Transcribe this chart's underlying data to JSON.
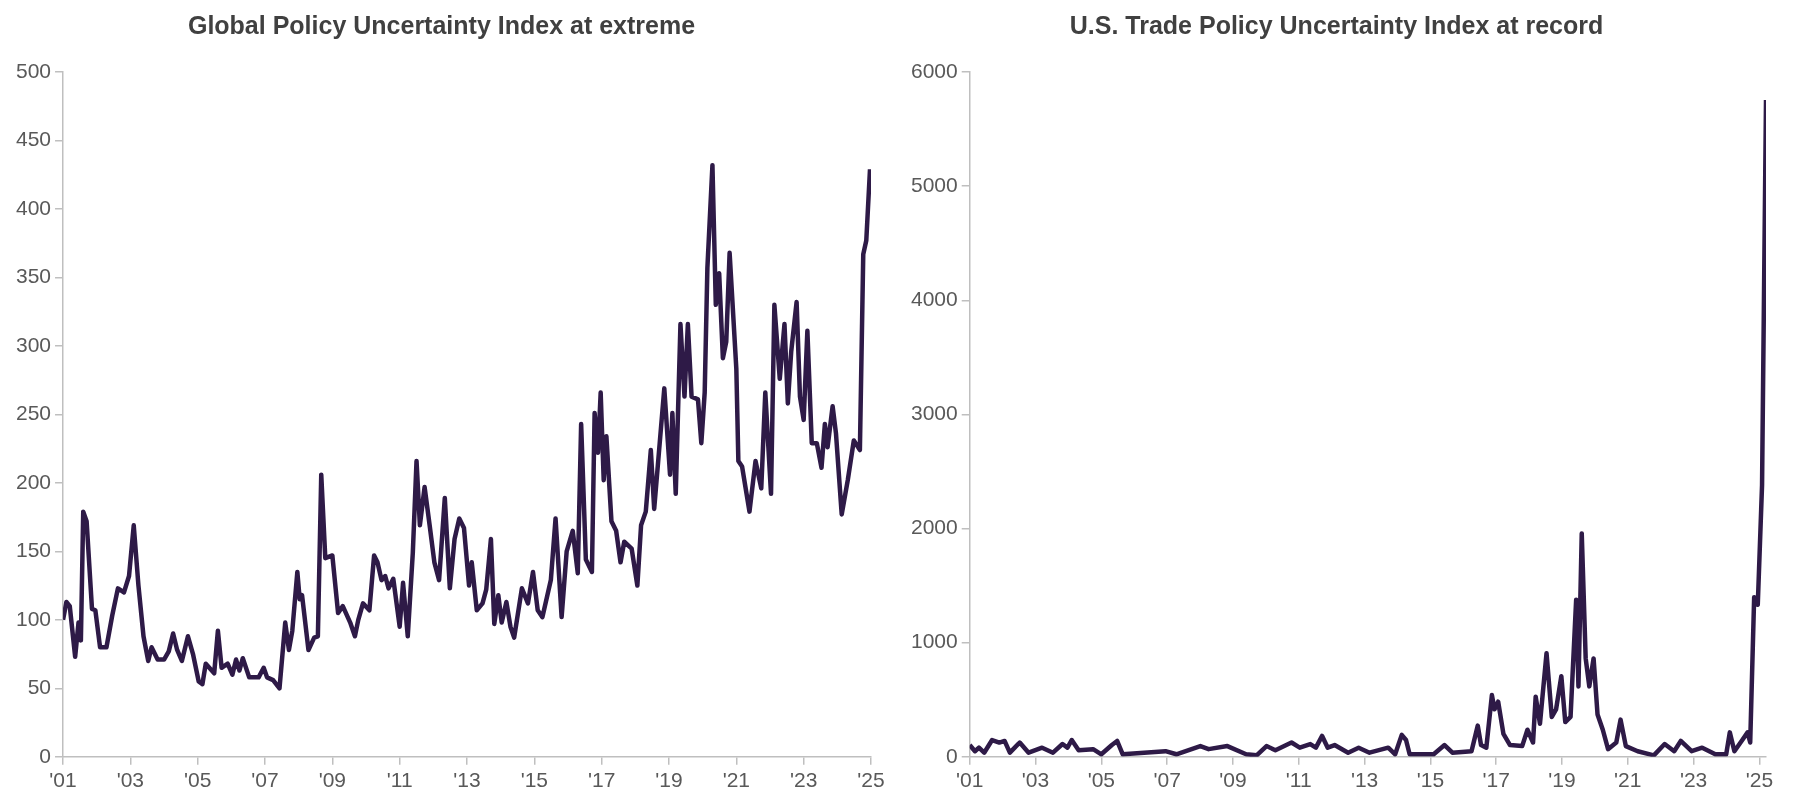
{
  "chart_data": [
    {
      "type": "line",
      "title": "Global Policy Uncertainty Index at extreme",
      "color": "#2e1a47",
      "grid": false,
      "xlim": [
        2001,
        2025
      ],
      "ylim": [
        0,
        500
      ],
      "yticks": [
        0,
        50,
        100,
        150,
        200,
        250,
        300,
        350,
        400,
        450,
        500
      ],
      "xticks": [
        {
          "value": 2001,
          "label": "'01"
        },
        {
          "value": 2003,
          "label": "'03"
        },
        {
          "value": 2005,
          "label": "'05"
        },
        {
          "value": 2007,
          "label": "'07"
        },
        {
          "value": 2009,
          "label": "'09"
        },
        {
          "value": 2011,
          "label": "'11"
        },
        {
          "value": 2013,
          "label": "'13"
        },
        {
          "value": 2015,
          "label": "'15"
        },
        {
          "value": 2017,
          "label": "'17"
        },
        {
          "value": 2019,
          "label": "'19"
        },
        {
          "value": 2021,
          "label": "'21"
        },
        {
          "value": 2023,
          "label": "'23"
        },
        {
          "value": 2025,
          "label": "'25"
        }
      ],
      "x": [
        2001.0,
        2001.1,
        2001.2,
        2001.36,
        2001.46,
        2001.53,
        2001.6,
        2001.7,
        2001.86,
        2001.96,
        2002.1,
        2002.29,
        2002.46,
        2002.63,
        2002.81,
        2002.96,
        2003.1,
        2003.24,
        2003.39,
        2003.53,
        2003.63,
        2003.81,
        2004.0,
        2004.14,
        2004.27,
        2004.39,
        2004.53,
        2004.71,
        2004.86,
        2005.03,
        2005.14,
        2005.24,
        2005.49,
        2005.6,
        2005.71,
        2005.89,
        2006.03,
        2006.14,
        2006.24,
        2006.34,
        2006.53,
        2006.81,
        2006.96,
        2007.06,
        2007.24,
        2007.43,
        2007.6,
        2007.71,
        2007.81,
        2007.96,
        2008.03,
        2008.1,
        2008.29,
        2008.46,
        2008.57,
        2008.67,
        2008.79,
        2009.0,
        2009.17,
        2009.31,
        2009.53,
        2009.67,
        2009.77,
        2009.91,
        2010.1,
        2010.24,
        2010.34,
        2010.46,
        2010.57,
        2010.67,
        2010.81,
        2011.0,
        2011.1,
        2011.24,
        2011.39,
        2011.5,
        2011.6,
        2011.74,
        2011.89,
        2012.03,
        2012.17,
        2012.34,
        2012.49,
        2012.63,
        2012.77,
        2012.91,
        2013.06,
        2013.14,
        2013.29,
        2013.46,
        2013.57,
        2013.71,
        2013.81,
        2013.93,
        2014.03,
        2014.17,
        2014.29,
        2014.4,
        2014.63,
        2014.81,
        2014.96,
        2015.1,
        2015.24,
        2015.49,
        2015.63,
        2015.81,
        2015.96,
        2016.14,
        2016.29,
        2016.39,
        2016.53,
        2016.71,
        2016.79,
        2016.89,
        2016.97,
        2017.06,
        2017.14,
        2017.29,
        2017.43,
        2017.56,
        2017.67,
        2017.89,
        2018.06,
        2018.17,
        2018.31,
        2018.46,
        2018.56,
        2018.86,
        2019.03,
        2019.1,
        2019.2,
        2019.34,
        2019.46,
        2019.56,
        2019.67,
        2019.86,
        2019.96,
        2020.06,
        2020.14,
        2020.29,
        2020.39,
        2020.49,
        2020.6,
        2020.7,
        2020.8,
        2021.0,
        2021.06,
        2021.17,
        2021.39,
        2021.57,
        2021.74,
        2021.86,
        2022.03,
        2022.13,
        2022.29,
        2022.43,
        2022.53,
        2022.63,
        2022.79,
        2022.89,
        2023.0,
        2023.11,
        2023.24,
        2023.39,
        2023.53,
        2023.63,
        2023.71,
        2023.86,
        2023.96,
        2024.13,
        2024.31,
        2024.49,
        2024.67,
        2024.77,
        2024.86,
        2024.97
      ],
      "values": [
        100,
        113,
        110,
        73,
        98,
        85,
        179,
        172,
        108,
        107,
        80,
        80,
        103,
        123,
        120,
        132,
        169,
        125,
        88,
        70,
        80,
        71,
        71,
        77,
        90,
        78,
        70,
        88,
        75,
        55,
        53,
        68,
        61,
        92,
        65,
        68,
        60,
        71,
        63,
        72,
        58,
        58,
        65,
        58,
        56,
        50,
        98,
        78,
        92,
        135,
        115,
        118,
        78,
        87,
        88,
        206,
        145,
        147,
        105,
        110,
        98,
        88,
        100,
        112,
        107,
        147,
        142,
        129,
        132,
        123,
        130,
        95,
        127,
        88,
        149,
        216,
        169,
        197,
        169,
        142,
        129,
        189,
        123,
        159,
        174,
        167,
        125,
        142,
        107,
        112,
        122,
        159,
        97,
        118,
        98,
        113,
        95,
        87,
        123,
        112,
        135,
        107,
        102,
        129,
        174,
        102,
        150,
        165,
        134,
        243,
        144,
        135,
        251,
        222,
        266,
        202,
        234,
        172,
        165,
        142,
        157,
        152,
        125,
        169,
        179,
        224,
        181,
        269,
        206,
        251,
        192,
        316,
        263,
        316,
        263,
        261,
        229,
        266,
        357,
        432,
        330,
        353,
        291,
        303,
        368,
        283,
        216,
        212,
        179,
        216,
        196,
        266,
        192,
        330,
        276,
        316,
        258,
        296,
        332,
        263,
        246,
        311,
        229,
        229,
        211,
        243,
        226,
        256,
        236,
        177,
        202,
        231,
        224,
        367,
        377,
        429
      ]
    },
    {
      "type": "line",
      "title": "U.S. Trade Policy Uncertainty Index at record",
      "color": "#2e1a47",
      "grid": false,
      "xlim": [
        2001,
        2025.2
      ],
      "ylim": [
        0,
        6000
      ],
      "yticks": [
        0,
        1000,
        2000,
        3000,
        4000,
        5000,
        6000
      ],
      "xticks": [
        {
          "value": 2001,
          "label": "'01"
        },
        {
          "value": 2003,
          "label": "'03"
        },
        {
          "value": 2005,
          "label": "'05"
        },
        {
          "value": 2007,
          "label": "'07"
        },
        {
          "value": 2009,
          "label": "'09"
        },
        {
          "value": 2011,
          "label": "'11"
        },
        {
          "value": 2013,
          "label": "'13"
        },
        {
          "value": 2015,
          "label": "'15"
        },
        {
          "value": 2017,
          "label": "'17"
        },
        {
          "value": 2019,
          "label": "'19"
        },
        {
          "value": 2021,
          "label": "'21"
        },
        {
          "value": 2023,
          "label": "'23"
        },
        {
          "value": 2025,
          "label": "'25"
        }
      ],
      "x": [
        2001.0,
        2001.16,
        2001.28,
        2001.44,
        2001.68,
        2001.9,
        2002.06,
        2002.22,
        2002.52,
        2002.79,
        2003.2,
        2003.53,
        2003.82,
        2003.97,
        2004.1,
        2004.31,
        2004.75,
        2005.0,
        2005.32,
        2005.48,
        2005.65,
        2006.3,
        2006.95,
        2007.28,
        2008.01,
        2008.26,
        2008.83,
        2009.4,
        2009.72,
        2010.02,
        2010.29,
        2010.78,
        2011.03,
        2011.35,
        2011.52,
        2011.71,
        2011.88,
        2012.09,
        2012.5,
        2012.82,
        2013.15,
        2013.72,
        2013.93,
        2014.13,
        2014.26,
        2014.37,
        2015.1,
        2015.43,
        2015.67,
        2016.25,
        2016.44,
        2016.54,
        2016.7,
        2016.87,
        2016.95,
        2017.06,
        2017.22,
        2017.42,
        2017.79,
        2017.95,
        2018.12,
        2018.2,
        2018.33,
        2018.53,
        2018.69,
        2018.82,
        2018.98,
        2019.1,
        2019.26,
        2019.43,
        2019.5,
        2019.6,
        2019.72,
        2019.83,
        2019.96,
        2020.08,
        2020.24,
        2020.4,
        2020.65,
        2020.78,
        2020.94,
        2021.3,
        2021.79,
        2022.12,
        2022.41,
        2022.61,
        2022.94,
        2023.26,
        2023.66,
        2023.99,
        2024.1,
        2024.24,
        2024.48,
        2024.64,
        2024.72,
        2024.84,
        2024.95,
        2025.08,
        2025.2
      ],
      "values": [
        103,
        49,
        80,
        36,
        147,
        125,
        139,
        36,
        125,
        36,
        80,
        36,
        112,
        80,
        147,
        58,
        67,
        22,
        103,
        139,
        22,
        36,
        49,
        22,
        94,
        67,
        94,
        22,
        13,
        94,
        58,
        125,
        80,
        112,
        80,
        183,
        80,
        103,
        36,
        80,
        36,
        80,
        22,
        192,
        147,
        22,
        22,
        103,
        36,
        49,
        273,
        103,
        80,
        541,
        416,
        483,
        201,
        103,
        94,
        237,
        125,
        527,
        290,
        907,
        349,
        416,
        706,
        304,
        349,
        1376,
        617,
        1957,
        862,
        617,
        862,
        371,
        237,
        67,
        125,
        326,
        94,
        49,
        13,
        112,
        49,
        139,
        49,
        80,
        22,
        22,
        214,
        49,
        147,
        214,
        125,
        1398,
        1332,
        2381,
        5755
      ]
    }
  ]
}
